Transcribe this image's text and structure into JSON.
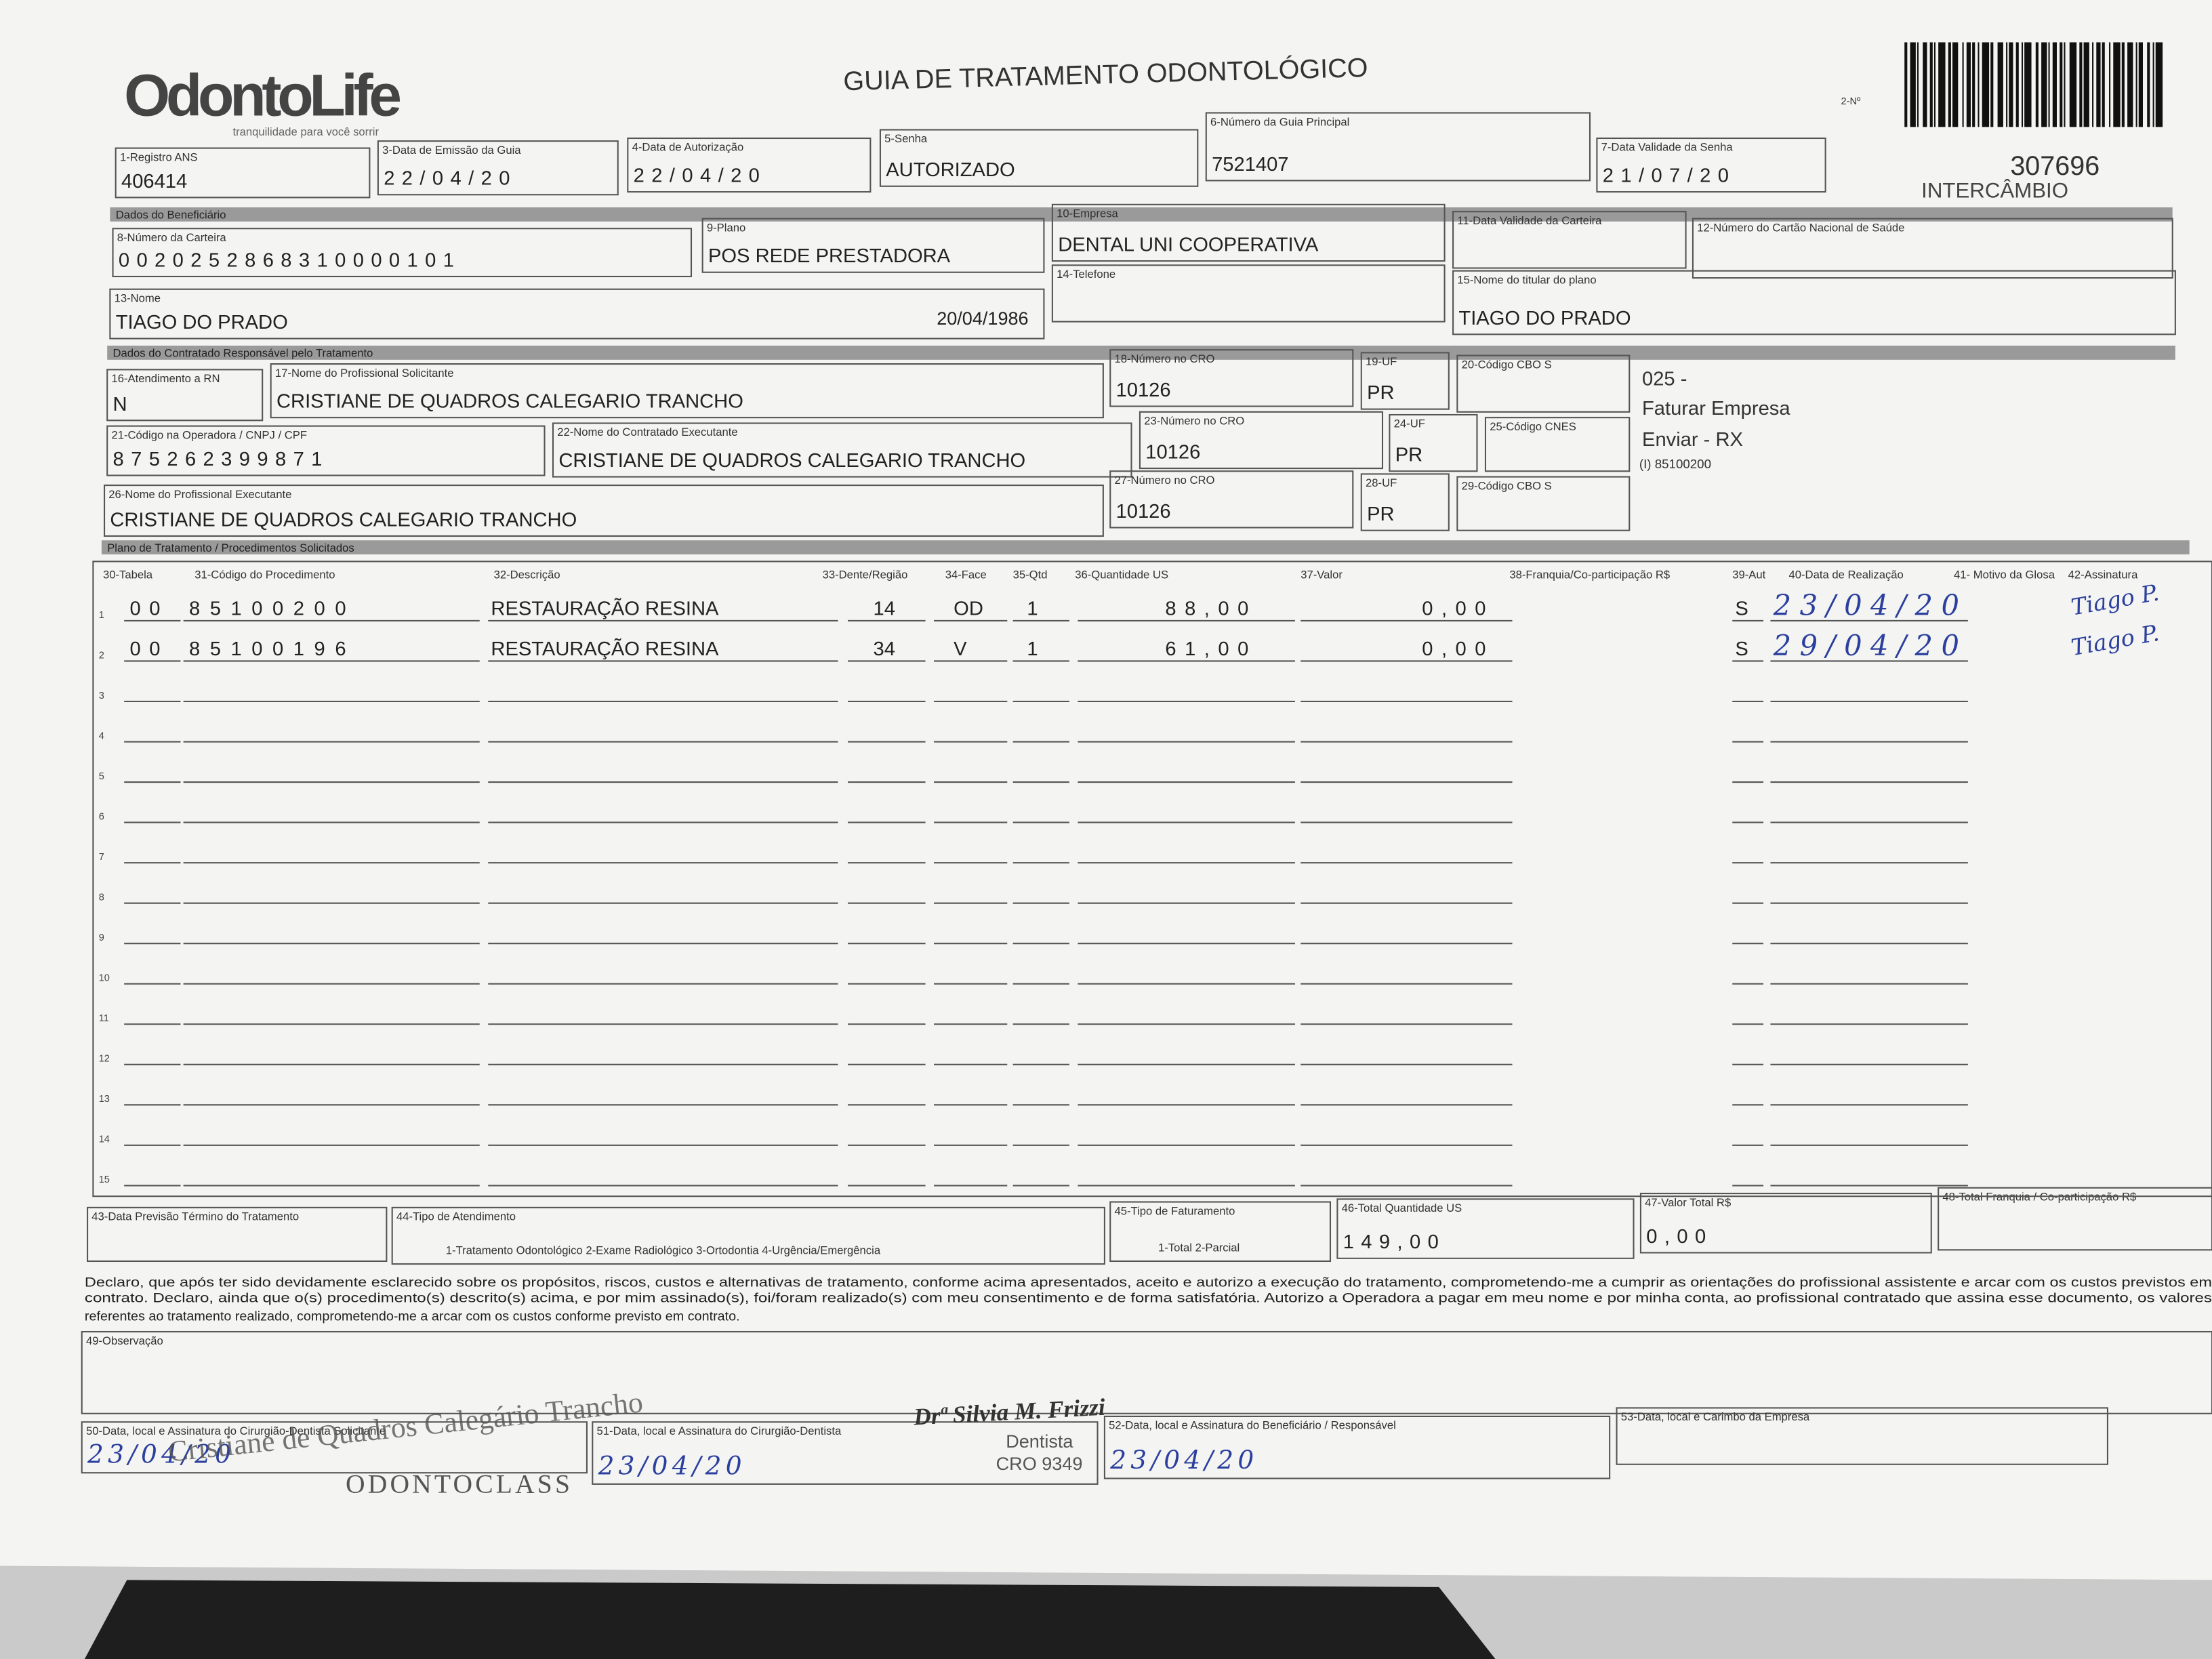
{
  "header": {
    "logo": "OdontoLife",
    "tagline": "tranquilidade para você sorrir",
    "title": "GUIA DE TRATAMENTO ODONTOLÓGICO",
    "number_label": "2-Nº",
    "number": "307696",
    "type": "INTERCÂMBIO"
  },
  "sections": [
    "Dados do Beneficiário",
    "Dados do Contratado Responsável pelo Tratamento",
    "Plano de Tratamento / Procedimentos Solicitados"
  ],
  "fields": [
    {
      "label": "1-Registro ANS",
      "value": "406414"
    },
    {
      "label": "3-Data de Emissão da Guia",
      "value": "22/04/20"
    },
    {
      "label": "4-Data de Autorização",
      "value": "22/04/20"
    },
    {
      "label": "5-Senha",
      "value": "AUTORIZADO"
    },
    {
      "label": "6-Número da Guia Principal",
      "value": "7521407"
    },
    {
      "label": "7-Data Validade da Senha",
      "value": "21/07/20"
    },
    {
      "label": "8-Número da Carteira",
      "value": "0020252868310000101"
    },
    {
      "label": "9-Plano",
      "value": "POS REDE PRESTADORA"
    },
    {
      "label": "10-Empresa",
      "value": "DENTAL UNI  COOPERATIVA"
    },
    {
      "label": "11-Data Validade da Carteira"
    },
    {
      "label": "12-Número do Cartão Nacional de Saúde"
    },
    {
      "label": "13-Nome",
      "value": "TIAGO DO PRADO",
      "extra": "20/04/1986"
    },
    {
      "label": "14-Telefone"
    },
    {
      "label": "15-Nome do titular do plano",
      "value": "TIAGO DO PRADO"
    },
    {
      "label": "16-Atendimento a RN",
      "value": "N"
    },
    {
      "label": "17-Nome do Profissional Solicitante",
      "value": "CRISTIANE DE QUADROS CALEGARIO TRANCHO"
    },
    {
      "label": "18-Número no CRO",
      "value": "10126"
    },
    {
      "label": "19-UF",
      "value": "PR"
    },
    {
      "label": "20-Código CBO S"
    },
    {
      "label": "21-Código na Operadora / CNPJ / CPF",
      "value": "875262399871"
    },
    {
      "label": "22-Nome do Contratado Executante",
      "value": "CRISTIANE DE QUADROS CALEGARIO TRANCHO"
    },
    {
      "label": "23-Número no CRO",
      "value": "10126"
    },
    {
      "label": "24-UF",
      "value": "PR"
    },
    {
      "label": "25-Código CNES"
    },
    {
      "label": "26-Nome do Profissional Executante",
      "value": "CRISTIANE DE QUADROS CALEGARIO TRANCHO"
    },
    {
      "label": "27-Número no CRO",
      "value": "10126"
    },
    {
      "label": "28-UF",
      "value": "PR"
    },
    {
      "label": "29-Código CBO S"
    },
    {
      "label": "43-Data Previsão Término do Tratamento"
    },
    {
      "label": "44-Tipo de Atendimento",
      "value": "1-Tratamento Odontológico  2-Exame Radiológico  3-Ortodontia  4-Urgência/Emergência"
    },
    {
      "label": "45-Tipo de Faturamento",
      "value": "1-Total  2-Parcial"
    },
    {
      "label": "46-Total Quantidade US",
      "value": "149,00"
    },
    {
      "label": "47-Valor Total R$",
      "value": "0,00"
    },
    {
      "label": "48-Total Franquia / Co-participação R$"
    },
    {
      "label": "49-Observação"
    },
    {
      "label": "50-Data, local e Assinatura do Cirurgião-Dentista Solicitante",
      "value": "23/04/20"
    },
    {
      "label": "51-Data, local e Assinatura do Cirurgião-Dentista",
      "value": "23/04/20"
    },
    {
      "label": "52-Data, local e Assinatura do Beneficiário / Responsável",
      "value": "23/04/20"
    },
    {
      "label": "53-Data, local e Carimbo da Empresa"
    }
  ],
  "side_notes": [
    "025 -",
    "Faturar Empresa",
    "Enviar - RX",
    "(I) 85100200"
  ],
  "table": {
    "headers": [
      "30-Tabela",
      "31-Código do Procedimento",
      "32-Descrição",
      "33-Dente/Região",
      "34-Face",
      "35-Qtd",
      "36-Quantidade US",
      "37-Valor",
      "38-Franquia/Co-participação R$",
      "39-Aut",
      "40-Data de Realização",
      "41- Motivo da Glosa",
      "42-Assinatura"
    ],
    "rows": [
      {
        "n": "1",
        "tab": "00",
        "code": "85100200",
        "desc": "RESTAURAÇÃO RESINA",
        "tooth": "14",
        "face": "OD",
        "qty": "1",
        "us": "88,00",
        "val": "0,00",
        "aut": "S",
        "date": "23/04/20",
        "sig": "Tiago P."
      },
      {
        "n": "2",
        "tab": "00",
        "code": "85100196",
        "desc": "RESTAURAÇÃO RESINA",
        "tooth": "34",
        "face": "V",
        "qty": "1",
        "us": "61,00",
        "val": "0,00",
        "aut": "S",
        "date": "29/04/20",
        "sig": "Tiago P."
      },
      {
        "n": "3"
      },
      {
        "n": "4"
      },
      {
        "n": "5"
      },
      {
        "n": "6"
      },
      {
        "n": "7"
      },
      {
        "n": "8"
      },
      {
        "n": "9"
      },
      {
        "n": "10"
      },
      {
        "n": "11"
      },
      {
        "n": "12"
      },
      {
        "n": "13"
      },
      {
        "n": "14"
      },
      {
        "n": "15"
      }
    ]
  },
  "declaration": [
    "Declaro, que após ter sido devidamente esclarecido sobre os propósitos, riscos, custos e alternativas de tratamento, conforme acima apresentados, aceito e autorizo a execução do tratamento, comprometendo-me a cumprir as orientações do profissional assistente e arcar com os custos previstos em",
    "contrato. Declaro, ainda que o(s) procedimento(s) descrito(s) acima, e por mim assinado(s), foi/foram realizado(s) com meu consentimento e de forma satisfatória. Autorizo a Operadora a pagar em meu nome e por minha conta, ao profissional contratado que assina esse documento, os valores",
    "referentes ao tratamento realizado, comprometendo-me a arcar com os custos conforme previsto em contrato."
  ],
  "stamps": {
    "solicitante": [
      "Cristiane de Quadros Calegário Trancho",
      "ODONTOCLASS"
    ],
    "executante": [
      "Drª Silvia M. Frizzi",
      "Dentista",
      "CRO 9349"
    ]
  }
}
